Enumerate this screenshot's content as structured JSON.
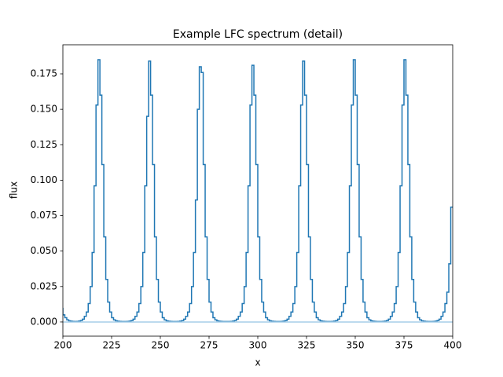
{
  "chart_data": {
    "type": "step",
    "title": "Example LFC spectrum (detail)",
    "x_label": "x",
    "y_label": "flux",
    "xlim": [
      200,
      400
    ],
    "ylim": [
      -0.01,
      0.1955
    ],
    "xticks": [
      200,
      225,
      250,
      275,
      300,
      325,
      350,
      375,
      400
    ],
    "yticks": [
      {
        "value": 0,
        "label": "0.000"
      },
      {
        "value": 0.025,
        "label": "0.025"
      },
      {
        "value": 0.05,
        "label": "0.050"
      },
      {
        "value": 0.075,
        "label": "0.075"
      },
      {
        "value": 0.1,
        "label": "0.100"
      },
      {
        "value": 0.125,
        "label": "0.125"
      },
      {
        "value": 0.15,
        "label": "0.150"
      },
      {
        "value": 0.175,
        "label": "0.175"
      }
    ],
    "series": [
      {
        "color": "#1f77b4",
        "x": [
          200,
          201,
          202,
          203,
          204,
          205,
          206,
          207,
          208,
          209,
          210,
          211,
          212,
          213,
          214,
          215,
          216,
          217,
          218,
          219,
          220,
          221,
          222,
          223,
          224,
          225,
          226,
          227,
          228,
          229,
          230,
          231,
          232,
          233,
          234,
          235,
          236,
          237,
          238,
          239,
          240,
          241,
          242,
          243,
          244,
          245,
          246,
          247,
          248,
          249,
          250,
          251,
          252,
          253,
          254,
          255,
          256,
          257,
          258,
          259,
          260,
          261,
          262,
          263,
          264,
          265,
          266,
          267,
          268,
          269,
          270,
          271,
          272,
          273,
          274,
          275,
          276,
          277,
          278,
          279,
          280,
          281,
          282,
          283,
          284,
          285,
          286,
          287,
          288,
          289,
          290,
          291,
          292,
          293,
          294,
          295,
          296,
          297,
          298,
          299,
          300,
          301,
          302,
          303,
          304,
          305,
          306,
          307,
          308,
          309,
          310,
          311,
          312,
          313,
          314,
          315,
          316,
          317,
          318,
          319,
          320,
          321,
          322,
          323,
          324,
          325,
          326,
          327,
          328,
          329,
          330,
          331,
          332,
          333,
          334,
          335,
          336,
          337,
          338,
          339,
          340,
          341,
          342,
          343,
          344,
          345,
          346,
          347,
          348,
          349,
          350,
          351,
          352,
          353,
          354,
          355,
          356,
          357,
          358,
          359,
          360,
          361,
          362,
          363,
          364,
          365,
          366,
          367,
          368,
          369,
          370,
          371,
          372,
          373,
          374,
          375,
          376,
          377,
          378,
          379,
          380,
          381,
          382,
          383,
          384,
          385,
          386,
          387,
          388,
          389,
          390,
          391,
          392,
          393,
          394,
          395,
          396,
          397,
          398,
          399,
          400
        ],
        "values": [
          0.01,
          0.005,
          0.003,
          0.0015,
          0.0008,
          0.0005,
          0.0004,
          0.0003,
          0.0004,
          0.0006,
          0.001,
          0.002,
          0.004,
          0.007,
          0.013,
          0.025,
          0.049,
          0.096,
          0.153,
          0.185,
          0.16,
          0.111,
          0.06,
          0.03,
          0.014,
          0.007,
          0.003,
          0.0015,
          0.0008,
          0.0005,
          0.0004,
          0.0003,
          0.0003,
          0.0003,
          0.0004,
          0.0006,
          0.001,
          0.002,
          0.004,
          0.007,
          0.013,
          0.025,
          0.049,
          0.096,
          0.145,
          0.184,
          0.16,
          0.111,
          0.06,
          0.03,
          0.014,
          0.007,
          0.003,
          0.0015,
          0.0008,
          0.0005,
          0.0004,
          0.0003,
          0.0003,
          0.0003,
          0.0004,
          0.0006,
          0.001,
          0.002,
          0.004,
          0.007,
          0.013,
          0.025,
          0.049,
          0.086,
          0.15,
          0.18,
          0.176,
          0.111,
          0.06,
          0.03,
          0.014,
          0.007,
          0.003,
          0.0015,
          0.0008,
          0.0005,
          0.0004,
          0.0003,
          0.0003,
          0.0003,
          0.0003,
          0.0004,
          0.0006,
          0.001,
          0.002,
          0.004,
          0.007,
          0.013,
          0.025,
          0.049,
          0.096,
          0.153,
          0.181,
          0.16,
          0.111,
          0.06,
          0.03,
          0.014,
          0.007,
          0.003,
          0.0015,
          0.0008,
          0.0005,
          0.0004,
          0.0003,
          0.0003,
          0.0003,
          0.0004,
          0.0006,
          0.001,
          0.002,
          0.004,
          0.007,
          0.013,
          0.025,
          0.049,
          0.096,
          0.153,
          0.184,
          0.16,
          0.111,
          0.06,
          0.03,
          0.014,
          0.007,
          0.003,
          0.0015,
          0.0008,
          0.0005,
          0.0004,
          0.0003,
          0.0003,
          0.0003,
          0.0004,
          0.0006,
          0.001,
          0.002,
          0.004,
          0.007,
          0.013,
          0.025,
          0.049,
          0.096,
          0.153,
          0.185,
          0.16,
          0.111,
          0.06,
          0.03,
          0.014,
          0.007,
          0.003,
          0.0015,
          0.0008,
          0.0005,
          0.0004,
          0.0003,
          0.0003,
          0.0003,
          0.0004,
          0.0006,
          0.001,
          0.002,
          0.004,
          0.007,
          0.013,
          0.025,
          0.049,
          0.096,
          0.153,
          0.185,
          0.16,
          0.111,
          0.06,
          0.03,
          0.014,
          0.007,
          0.003,
          0.0015,
          0.0008,
          0.0005,
          0.0004,
          0.0003,
          0.0003,
          0.0003,
          0.0004,
          0.0006,
          0.001,
          0.002,
          0.004,
          0.007,
          0.013,
          0.021,
          0.041,
          0.081
        ]
      },
      {
        "color": "#a6cde8",
        "x": [
          200,
          400
        ],
        "values": [
          0,
          0
        ]
      }
    ]
  }
}
